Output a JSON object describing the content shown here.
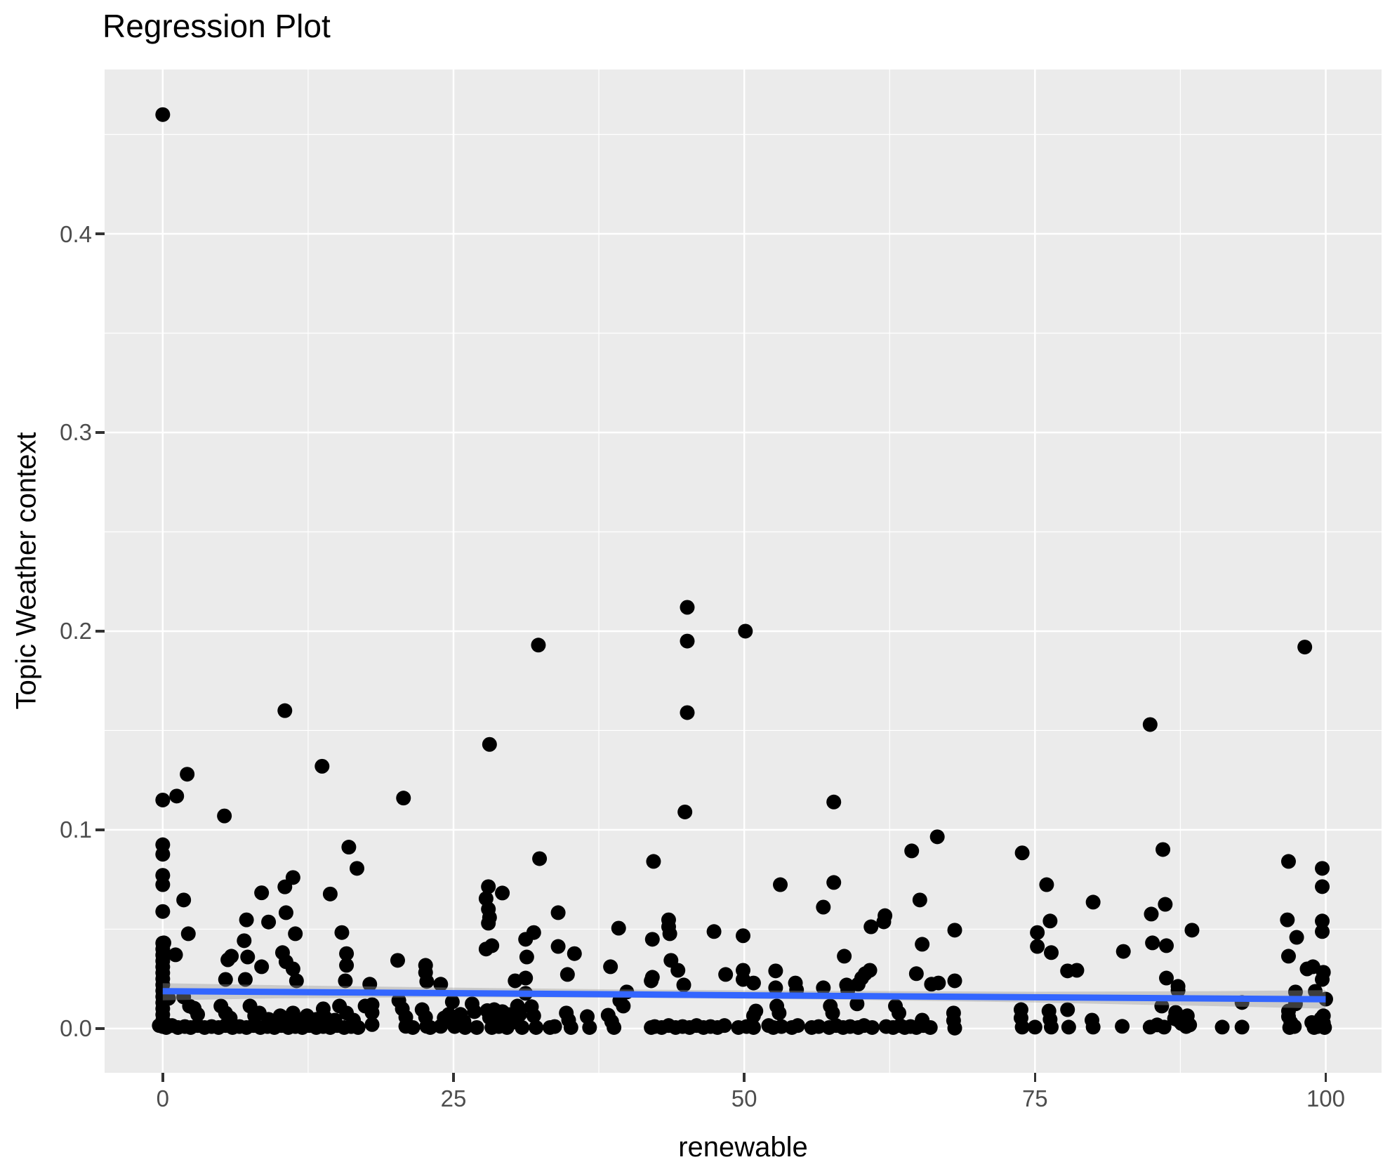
{
  "chart_data": {
    "type": "scatter",
    "title": "Regression Plot",
    "xlabel": "renewable",
    "ylabel": "Topic Weather context",
    "xlim": [
      -5.0,
      104.8
    ],
    "ylim": [
      -0.0223,
      0.4827
    ],
    "grid": true,
    "legend": "none",
    "x_ticks": {
      "values": [
        0,
        25,
        50,
        75,
        100
      ],
      "labels": [
        "0",
        "25",
        "50",
        "75",
        "100"
      ]
    },
    "y_ticks": {
      "values": [
        0,
        0.1,
        0.2,
        0.3,
        0.4
      ],
      "labels": [
        "0.0",
        "0.1",
        "0.2",
        "0.3",
        "0.4"
      ]
    },
    "x_minor": [
      12.5,
      37.5,
      62.5,
      87.5
    ],
    "y_minor": [
      0.05,
      0.15,
      0.25,
      0.35,
      0.45
    ],
    "colors": {
      "panel_background": "#EBEBEB",
      "gridline": "#FFFFFF",
      "point": "#000000",
      "regression_line": "#3366FF",
      "confidence_band": "#999999",
      "tick_label": "#4D4D4D",
      "tick_mark": "#333333",
      "text": "#000000"
    },
    "point_radius": 10.5,
    "regression_line": {
      "x": [
        0,
        100
      ],
      "y": [
        0.0188,
        0.0147
      ]
    },
    "confidence_band": [
      [
        0,
        0.0142,
        0.0228
      ],
      [
        10,
        0.0152,
        0.0218
      ],
      [
        25,
        0.0158,
        0.0206
      ],
      [
        40,
        0.0155,
        0.0196
      ],
      [
        50,
        0.015,
        0.0192
      ],
      [
        60,
        0.0144,
        0.0189
      ],
      [
        75,
        0.0131,
        0.0185
      ],
      [
        90,
        0.0113,
        0.0188
      ],
      [
        100,
        0.01,
        0.0193
      ]
    ],
    "points": [
      [
        0,
        0.46
      ],
      [
        2.1,
        0.128
      ],
      [
        0,
        0.115
      ],
      [
        1.2,
        0.117
      ],
      [
        5.3,
        0.107
      ],
      [
        10.5,
        0.16
      ],
      [
        13.7,
        0.132
      ],
      [
        20.7,
        0.116
      ],
      [
        28.1,
        0.143
      ],
      [
        32.3,
        0.193
      ],
      [
        45.1,
        0.212
      ],
      [
        45.1,
        0.195
      ],
      [
        45.1,
        0.159
      ],
      [
        50.1,
        0.2
      ],
      [
        44.9,
        0.109
      ],
      [
        57.7,
        0.114
      ],
      [
        84.9,
        0.153
      ],
      [
        98.2,
        0.192
      ],
      [
        0,
        0.0925
      ],
      [
        0,
        0.0877
      ],
      [
        0,
        0.0771
      ],
      [
        0,
        0.0724
      ],
      [
        16,
        0.0913
      ],
      [
        16.7,
        0.0806
      ],
      [
        8.5,
        0.0683
      ],
      [
        10.5,
        0.0713
      ],
      [
        11.2,
        0.076
      ],
      [
        14.4,
        0.0677
      ],
      [
        1.8,
        0.0647
      ],
      [
        0,
        0.0589
      ],
      [
        32.4,
        0.0855
      ],
      [
        28,
        0.0714
      ],
      [
        29.2,
        0.0682
      ],
      [
        27.8,
        0.0654
      ],
      [
        28,
        0.0601
      ],
      [
        28.1,
        0.0559
      ],
      [
        28,
        0.053
      ],
      [
        42.2,
        0.0841
      ],
      [
        64.4,
        0.0894
      ],
      [
        66.6,
        0.0965
      ],
      [
        73.9,
        0.0884
      ],
      [
        86,
        0.0901
      ],
      [
        53.1,
        0.0724
      ],
      [
        57.7,
        0.0735
      ],
      [
        56.8,
        0.0611
      ],
      [
        65.1,
        0.0647
      ],
      [
        76,
        0.0724
      ],
      [
        80,
        0.0636
      ],
      [
        86.2,
        0.0625
      ],
      [
        85,
        0.0576
      ],
      [
        96.8,
        0.0841
      ],
      [
        99.7,
        0.0806
      ],
      [
        99.7,
        0.0714
      ],
      [
        7.2,
        0.0547
      ],
      [
        9.1,
        0.0536
      ],
      [
        10.6,
        0.0583
      ],
      [
        11.4,
        0.0477
      ],
      [
        15.4,
        0.0483
      ],
      [
        15.8,
        0.0377
      ],
      [
        15.8,
        0.0318
      ],
      [
        2.2,
        0.0477
      ],
      [
        0.1,
        0.0431
      ],
      [
        1.1,
        0.0371
      ],
      [
        5.6,
        0.0346
      ],
      [
        5.9,
        0.0364
      ],
      [
        7,
        0.0442
      ],
      [
        7.3,
        0.036
      ],
      [
        8.5,
        0.0311
      ],
      [
        10.3,
        0.0382
      ],
      [
        10.6,
        0.0336
      ],
      [
        11.2,
        0.03
      ],
      [
        34,
        0.0583
      ],
      [
        31.9,
        0.0483
      ],
      [
        31.2,
        0.0449
      ],
      [
        28.3,
        0.0417
      ],
      [
        27.8,
        0.04
      ],
      [
        34,
        0.0413
      ],
      [
        31.3,
        0.036
      ],
      [
        35.4,
        0.0377
      ],
      [
        39.2,
        0.0505
      ],
      [
        38.5,
        0.0311
      ],
      [
        20.2,
        0.0343
      ],
      [
        22.6,
        0.0318
      ],
      [
        22.6,
        0.0282
      ],
      [
        43.5,
        0.0547
      ],
      [
        43.5,
        0.0512
      ],
      [
        43.6,
        0.0477
      ],
      [
        47.4,
        0.0488
      ],
      [
        49.9,
        0.0467
      ],
      [
        60.9,
        0.0512
      ],
      [
        62,
        0.0537
      ],
      [
        62.1,
        0.0568
      ],
      [
        65.3,
        0.0424
      ],
      [
        42.1,
        0.0449
      ],
      [
        43.7,
        0.0343
      ],
      [
        58.6,
        0.0364
      ],
      [
        76.3,
        0.0541
      ],
      [
        68.1,
        0.0495
      ],
      [
        75.2,
        0.0483
      ],
      [
        75.2,
        0.0413
      ],
      [
        76.4,
        0.0382
      ],
      [
        82.6,
        0.0388
      ],
      [
        85.1,
        0.0431
      ],
      [
        86.3,
        0.0417
      ],
      [
        88.5,
        0.0495
      ],
      [
        96.7,
        0.0547
      ],
      [
        99.7,
        0.0541
      ],
      [
        99.7,
        0.0488
      ],
      [
        97.5,
        0.0459
      ],
      [
        96.8,
        0.0364
      ],
      [
        98.4,
        0.03
      ],
      [
        98.9,
        0.0311
      ],
      [
        5.4,
        0.0247
      ],
      [
        7.1,
        0.0247
      ],
      [
        11.5,
        0.024
      ],
      [
        15.7,
        0.024
      ],
      [
        17.8,
        0.0223
      ],
      [
        22.7,
        0.0237
      ],
      [
        23.9,
        0.0223
      ],
      [
        30.3,
        0.024
      ],
      [
        31.2,
        0.0254
      ],
      [
        31.2,
        0.0177
      ],
      [
        34.8,
        0.0272
      ],
      [
        42,
        0.024
      ],
      [
        42.1,
        0.0258
      ],
      [
        44.3,
        0.0293
      ],
      [
        44.8,
        0.0219
      ],
      [
        48.4,
        0.0272
      ],
      [
        49.9,
        0.0293
      ],
      [
        49.9,
        0.0247
      ],
      [
        50.8,
        0.0229
      ],
      [
        52.7,
        0.029
      ],
      [
        52.7,
        0.0205
      ],
      [
        54.4,
        0.0229
      ],
      [
        54.5,
        0.0194
      ],
      [
        56.8,
        0.0205
      ],
      [
        58.8,
        0.0219
      ],
      [
        58.9,
        0.0191
      ],
      [
        59.8,
        0.0223
      ],
      [
        60.1,
        0.0254
      ],
      [
        60.4,
        0.0276
      ],
      [
        60.8,
        0.0293
      ],
      [
        64.8,
        0.0276
      ],
      [
        66.1,
        0.0223
      ],
      [
        66.7,
        0.0229
      ],
      [
        68.1,
        0.024
      ],
      [
        77.8,
        0.029
      ],
      [
        78.6,
        0.0293
      ],
      [
        86.3,
        0.0254
      ],
      [
        87.3,
        0.0212
      ],
      [
        87.3,
        0.0191
      ],
      [
        99.8,
        0.0283
      ],
      [
        99.7,
        0.0247
      ],
      [
        97.4,
        0.0184
      ],
      [
        99.1,
        0.0187
      ],
      [
        100,
        0.0148
      ],
      [
        0.5,
        0.0152
      ],
      [
        1.8,
        0.0159
      ],
      [
        20.3,
        0.0141
      ],
      [
        24.9,
        0.0134
      ],
      [
        39.9,
        0.0184
      ],
      [
        39.3,
        0.0141
      ],
      [
        92.8,
        0.0131
      ],
      [
        0,
        0.043
      ],
      [
        0,
        0.04
      ],
      [
        0,
        0.037
      ],
      [
        0,
        0.034
      ],
      [
        0,
        0.031
      ],
      [
        0,
        0.028
      ],
      [
        0,
        0.025
      ],
      [
        0,
        0.022
      ],
      [
        0,
        0.019
      ],
      [
        0,
        0.016
      ],
      [
        0,
        0.013
      ],
      [
        0,
        0.01
      ],
      [
        0,
        0.007
      ],
      [
        0,
        0.004
      ],
      [
        0,
        0.001
      ],
      [
        0.2,
        0.0025
      ],
      [
        -0.3,
        0.0015
      ],
      [
        2.3,
        0.0113
      ],
      [
        2.7,
        0.0102
      ],
      [
        3,
        0.0071
      ],
      [
        5,
        0.0113
      ],
      [
        5.4,
        0.0078
      ],
      [
        5.8,
        0.0053
      ],
      [
        7.5,
        0.0113
      ],
      [
        7.9,
        0.0064
      ],
      [
        8.3,
        0.0078
      ],
      [
        9.1,
        0.0046
      ],
      [
        10.1,
        0.0064
      ],
      [
        10.5,
        0.0046
      ],
      [
        11.2,
        0.0078
      ],
      [
        12,
        0.0042
      ],
      [
        12.4,
        0.0064
      ],
      [
        13.2,
        0.0046
      ],
      [
        13.8,
        0.0099
      ],
      [
        14,
        0.0053
      ],
      [
        14.8,
        0.0042
      ],
      [
        15.2,
        0.0113
      ],
      [
        15.8,
        0.0078
      ],
      [
        16.4,
        0.0042
      ],
      [
        17.4,
        0.0113
      ],
      [
        18,
        0.012
      ],
      [
        18,
        0.008
      ],
      [
        18,
        0.002
      ],
      [
        20.6,
        0.0099
      ],
      [
        20.9,
        0.0057
      ],
      [
        20.9,
        0.0011
      ],
      [
        22.3,
        0.0095
      ],
      [
        22.6,
        0.0057
      ],
      [
        22.7,
        0.0011
      ],
      [
        23.9,
        0.0011
      ],
      [
        24.2,
        0.0053
      ],
      [
        24.6,
        0.0071
      ],
      [
        25,
        0.004
      ],
      [
        25.1,
        0.001
      ],
      [
        25.6,
        0.0071
      ],
      [
        25.9,
        0.0035
      ],
      [
        26,
        0.0005
      ],
      [
        26.6,
        0.0124
      ],
      [
        26.8,
        0.0085
      ],
      [
        27,
        0.0005
      ],
      [
        27.9,
        0.009
      ],
      [
        28.1,
        0.0055
      ],
      [
        28.3,
        0.0005
      ],
      [
        28.5,
        0.0095
      ],
      [
        28.7,
        0.006
      ],
      [
        28.9,
        0.001
      ],
      [
        29.2,
        0.0085
      ],
      [
        29.4,
        0.005
      ],
      [
        29.6,
        0.0005
      ],
      [
        29.8,
        0.007
      ],
      [
        30,
        0.003
      ],
      [
        30.5,
        0.0113
      ],
      [
        30.7,
        0.0071
      ],
      [
        30.9,
        0.0005
      ],
      [
        31.7,
        0.011
      ],
      [
        31.9,
        0.0064
      ],
      [
        32.1,
        0.0005
      ],
      [
        33.3,
        0.0005
      ],
      [
        33.7,
        0.001
      ],
      [
        34.7,
        0.0078
      ],
      [
        34.9,
        0.0042
      ],
      [
        35.1,
        0.0005
      ],
      [
        36.5,
        0.006
      ],
      [
        36.7,
        0.0005
      ],
      [
        38.3,
        0.0067
      ],
      [
        38.6,
        0.0035
      ],
      [
        38.8,
        0.0005
      ],
      [
        39.6,
        0.0113
      ],
      [
        42,
        0.0005
      ],
      [
        50.8,
        0.0064
      ],
      [
        51,
        0.0088
      ],
      [
        52.8,
        0.0113
      ],
      [
        53,
        0.0078
      ],
      [
        57.4,
        0.0113
      ],
      [
        57.6,
        0.0078
      ],
      [
        59.7,
        0.0124
      ],
      [
        63,
        0.0113
      ],
      [
        63.3,
        0.0078
      ],
      [
        65.3,
        0.0042
      ],
      [
        68,
        0.0078
      ],
      [
        68,
        0.004
      ],
      [
        68.1,
        0.0002
      ],
      [
        73.8,
        0.0095
      ],
      [
        73.8,
        0.0053
      ],
      [
        73.9,
        0.0007
      ],
      [
        75,
        0.0007
      ],
      [
        76.2,
        0.0088
      ],
      [
        76.3,
        0.0046
      ],
      [
        76.4,
        0.0007
      ],
      [
        77.8,
        0.0095
      ],
      [
        77.9,
        0.0007
      ],
      [
        79.9,
        0.0042
      ],
      [
        80,
        0.0007
      ],
      [
        82.5,
        0.0011
      ],
      [
        84.9,
        0.0007
      ],
      [
        85.5,
        0.0018
      ],
      [
        85.9,
        0.0113
      ],
      [
        86.1,
        0.0007
      ],
      [
        87,
        0.005
      ],
      [
        87.1,
        0.0081
      ],
      [
        87.3,
        0.0042
      ],
      [
        87.6,
        0.0025
      ],
      [
        88,
        0.001
      ],
      [
        88.1,
        0.0064
      ],
      [
        88.3,
        0.0018
      ],
      [
        91.1,
        0.0007
      ],
      [
        92.8,
        0.0007
      ],
      [
        96.8,
        0.0088
      ],
      [
        97.4,
        0.0124
      ],
      [
        96.8,
        0.006
      ],
      [
        97,
        0.003
      ],
      [
        97.3,
        0.001
      ],
      [
        96.9,
        0.0005
      ],
      [
        98.8,
        0.003
      ],
      [
        99,
        0.0005
      ],
      [
        99.3,
        0.001
      ],
      [
        99.6,
        0.005
      ],
      [
        99.8,
        0.0064
      ],
      [
        99.8,
        0.0028
      ],
      [
        99.9,
        0.0005
      ],
      [
        0.3,
        0.0005
      ],
      [
        0.8,
        0.0015
      ],
      [
        1.3,
        0.0005
      ],
      [
        1.9,
        0.001
      ],
      [
        2.4,
        0.0005
      ],
      [
        3,
        0.0015
      ],
      [
        3.6,
        0.0005
      ],
      [
        4.2,
        0.001
      ],
      [
        4.8,
        0.0005
      ],
      [
        5.4,
        0.0015
      ],
      [
        6,
        0.0005
      ],
      [
        6.6,
        0.001
      ],
      [
        7.2,
        0.0005
      ],
      [
        7.8,
        0.0015
      ],
      [
        8.4,
        0.0005
      ],
      [
        9,
        0.001
      ],
      [
        9.6,
        0.0005
      ],
      [
        10.2,
        0.0015
      ],
      [
        10.8,
        0.0005
      ],
      [
        11.4,
        0.001
      ],
      [
        12,
        0.0005
      ],
      [
        12.6,
        0.0015
      ],
      [
        13.2,
        0.0005
      ],
      [
        13.8,
        0.001
      ],
      [
        14.4,
        0.0005
      ],
      [
        15,
        0.0015
      ],
      [
        15.6,
        0.0005
      ],
      [
        16.2,
        0.001
      ],
      [
        16.8,
        0.0005
      ],
      [
        21.5,
        0.0005
      ],
      [
        23,
        0.0005
      ],
      [
        42.3,
        0.001
      ],
      [
        42.9,
        0.0005
      ],
      [
        43.5,
        0.0015
      ],
      [
        44.1,
        0.0005
      ],
      [
        44.7,
        0.001
      ],
      [
        45.3,
        0.0005
      ],
      [
        45.9,
        0.0015
      ],
      [
        46.5,
        0.0005
      ],
      [
        47.1,
        0.001
      ],
      [
        47.7,
        0.0005
      ],
      [
        48.3,
        0.0015
      ],
      [
        49.5,
        0.0005
      ],
      [
        50.2,
        0.001
      ],
      [
        50.8,
        0.0005
      ],
      [
        52.1,
        0.0015
      ],
      [
        52.5,
        0.0005
      ],
      [
        53.2,
        0.001
      ],
      [
        54.1,
        0.0005
      ],
      [
        54.6,
        0.0015
      ],
      [
        55.8,
        0.0005
      ],
      [
        56.4,
        0.001
      ],
      [
        57.3,
        0.0005
      ],
      [
        57.9,
        0.0015
      ],
      [
        58.5,
        0.0005
      ],
      [
        59.1,
        0.001
      ],
      [
        59.8,
        0.0005
      ],
      [
        60.3,
        0.0015
      ],
      [
        61,
        0.0005
      ],
      [
        62.2,
        0.001
      ],
      [
        62.8,
        0.0005
      ],
      [
        63.4,
        0.0015
      ],
      [
        63.8,
        0.0005
      ],
      [
        64.3,
        0.001
      ],
      [
        64.8,
        0.0005
      ],
      [
        65.4,
        0.0015
      ],
      [
        66,
        0.0005
      ]
    ]
  },
  "layout_note": "ggplot2-style scatter plot with linear regression smooth and confidence band"
}
